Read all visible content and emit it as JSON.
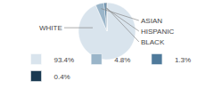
{
  "chart_data": {
    "type": "pie",
    "categories": [
      "WHITE",
      "ASIAN",
      "HISPANIC",
      "BLACK"
    ],
    "values": [
      93.4,
      4.8,
      1.3,
      0.4
    ],
    "value_labels": [
      "93.4%",
      "4.8%",
      "1.3%",
      "0.4%"
    ],
    "colors": [
      "#d9e4ed",
      "#9ab5c9",
      "#4f7a9b",
      "#1a3a52"
    ],
    "legend": "bottom"
  }
}
